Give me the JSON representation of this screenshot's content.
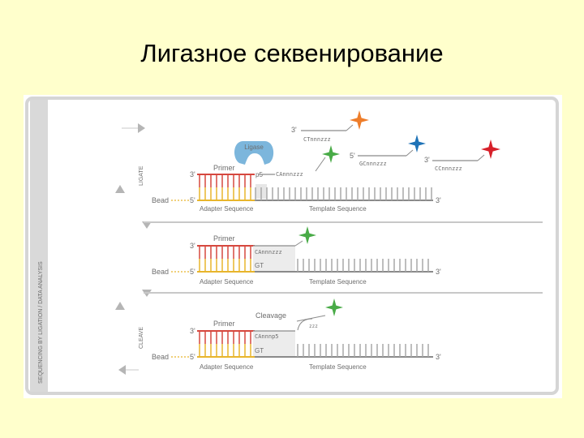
{
  "title": "Лигазное секвенирование",
  "side_label": "SEQUENCING BY LIGATION / DATA ANALYSIS",
  "step_labels": {
    "ligate": "LIGATE",
    "cleave": "CLEAVE"
  },
  "enzyme": "Ligase",
  "labels": {
    "primer": "Primer",
    "bead": "Bead",
    "adapter": "Adapter Sequence",
    "template": "Template Sequence",
    "cleavage": "Cleavage",
    "three_prime": "3'",
    "five_prime": "5'",
    "p5": "p5",
    "gt": "GT"
  },
  "probes": {
    "bound_ligate": "CAnnnzzz",
    "bound_panel2": "CAnnnzzz",
    "bound_panel3": "CAnnnp5",
    "orange": "CTnnnzzz",
    "blue": "GCnnnzzz",
    "red": "CCnnnzzz",
    "cleaved_fragment": "zzz"
  },
  "colors": {
    "orange": "#ee7d2a",
    "green": "#49ab47",
    "blue": "#1f73b7",
    "red": "#d7202a",
    "ligase": "#7cb6dc",
    "primer": "#d6483f",
    "adapter": "#e8b52c",
    "template": "#8a8a8a"
  }
}
